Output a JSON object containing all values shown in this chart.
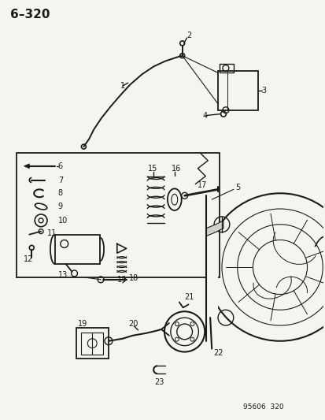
{
  "title": "6–320",
  "watermark": "95606 320",
  "bg": "#f5f5f0",
  "lc": "#1a1a1a",
  "figsize": [
    4.14,
    5.33
  ],
  "dpi": 100
}
